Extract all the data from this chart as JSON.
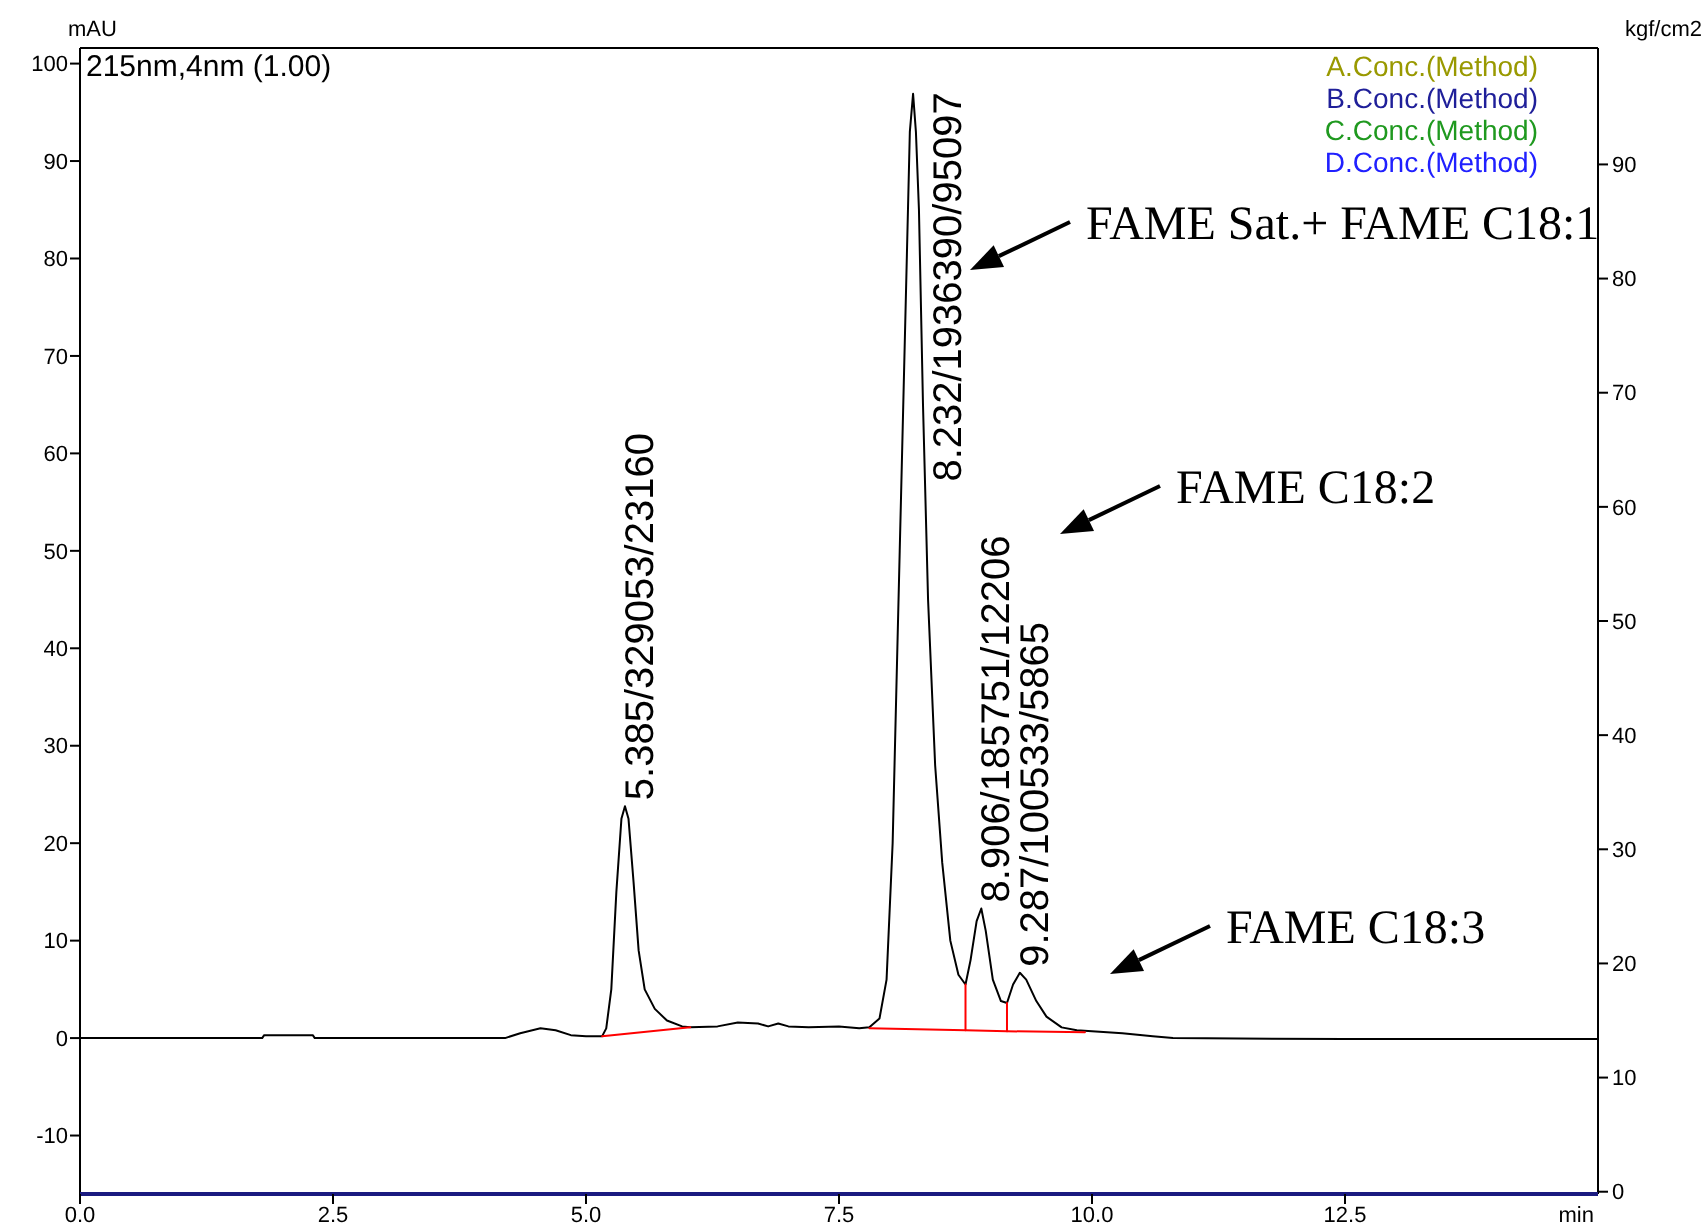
{
  "chart_data": {
    "type": "line",
    "xlabel": "min",
    "ylabel": "mAU",
    "y2label": "kgf/cm2",
    "xlim": [
      0,
      15
    ],
    "xticks": [
      {
        "value": 0,
        "label": "0.0"
      },
      {
        "value": 2.5,
        "label": "2.5"
      },
      {
        "value": 5,
        "label": "5.0"
      },
      {
        "value": 7.5,
        "label": "7.5"
      },
      {
        "value": 10,
        "label": "10.0"
      },
      {
        "value": 12.5,
        "label": "12.5"
      }
    ],
    "ylim": [
      -16,
      101.6
    ],
    "yticks": [
      -10,
      0,
      10,
      20,
      30,
      40,
      50,
      60,
      70,
      80,
      90,
      100
    ],
    "y2lim": [
      -0.2,
      100.2
    ],
    "y2ticks": [
      0,
      10,
      20,
      30,
      40,
      50,
      60,
      70,
      80,
      90
    ],
    "legend": "top left",
    "grid": false,
    "series": [
      {
        "name": "215nm,4nm (1.00)",
        "color": "#000000",
        "x": [
          0,
          1.8,
          1.82,
          2.3,
          2.32,
          4.2,
          4.35,
          4.55,
          4.7,
          4.85,
          5.0,
          5.16,
          5.2,
          5.25,
          5.3,
          5.35,
          5.385,
          5.42,
          5.47,
          5.52,
          5.58,
          5.68,
          5.8,
          5.95,
          6.03,
          6.3,
          6.5,
          6.7,
          6.8,
          6.9,
          7.0,
          7.2,
          7.5,
          7.7,
          7.8,
          7.9,
          7.97,
          8.03,
          8.1,
          8.17,
          8.2,
          8.232,
          8.26,
          8.29,
          8.33,
          8.38,
          8.45,
          8.52,
          8.6,
          8.68,
          8.75,
          8.8,
          8.86,
          8.906,
          8.95,
          9.02,
          9.1,
          9.16,
          9.22,
          9.287,
          9.35,
          9.45,
          9.55,
          9.7,
          9.85,
          10.0,
          10.3,
          10.6,
          10.8,
          12.5,
          15
        ],
        "values": [
          0,
          0,
          0.3,
          0.3,
          0,
          0,
          0.5,
          1.0,
          0.8,
          0.3,
          0.2,
          0.2,
          1,
          5,
          15,
          22.5,
          23.8,
          22.5,
          16,
          9,
          5,
          3,
          1.8,
          1.2,
          1.1,
          1.2,
          1.6,
          1.5,
          1.2,
          1.5,
          1.2,
          1.1,
          1.2,
          1.0,
          1.1,
          2,
          6,
          20,
          50,
          80,
          93,
          96.9,
          93,
          85,
          65,
          45,
          28,
          18,
          10,
          6.5,
          5.5,
          8,
          12,
          13.3,
          11,
          6,
          3.8,
          3.6,
          5.5,
          6.7,
          6,
          3.8,
          2.2,
          1.1,
          0.8,
          0.7,
          0.5,
          0.2,
          0,
          -0.1,
          -0.1
        ]
      },
      {
        "color": "#ff0000",
        "x": [
          5.16,
          6.03
        ],
        "values": [
          0.2,
          1.1
        ]
      },
      {
        "color": "#ff0000",
        "x": [
          7.8,
          8.75,
          9.16,
          9.93
        ],
        "values": [
          1.0,
          0.8,
          0.7,
          0.6
        ]
      },
      {
        "color": "#ff0000",
        "x": [
          8.75,
          8.75
        ],
        "values": [
          0.8,
          5.5
        ]
      },
      {
        "color": "#ff0000",
        "x": [
          9.16,
          9.16
        ],
        "values": [
          0.7,
          3.6
        ]
      },
      {
        "name": "A.Conc.(Method)",
        "color": "#999900"
      },
      {
        "name": "B.Conc.(Method)",
        "color": "#1f1f99"
      },
      {
        "name": "C.Conc.(Method)",
        "color": "#1f991f"
      },
      {
        "name": "D.Conc.(Method)",
        "color": "#2020ff"
      }
    ],
    "annotations": [
      {
        "text": "5.385/329053/23160",
        "x": 5.385,
        "y": 23.8
      },
      {
        "text": "8.232/1936390/95097",
        "x": 8.232,
        "y": 96.9
      },
      {
        "text": "8.906/185751/12206",
        "x": 8.906,
        "y": 13.3
      },
      {
        "text": "9.287/100533/5865",
        "x": 9.287,
        "y": 6.7
      },
      "FAME Sat.+ FAME C18:1",
      "FAME C18:2",
      "FAME C18:3"
    ]
  }
}
